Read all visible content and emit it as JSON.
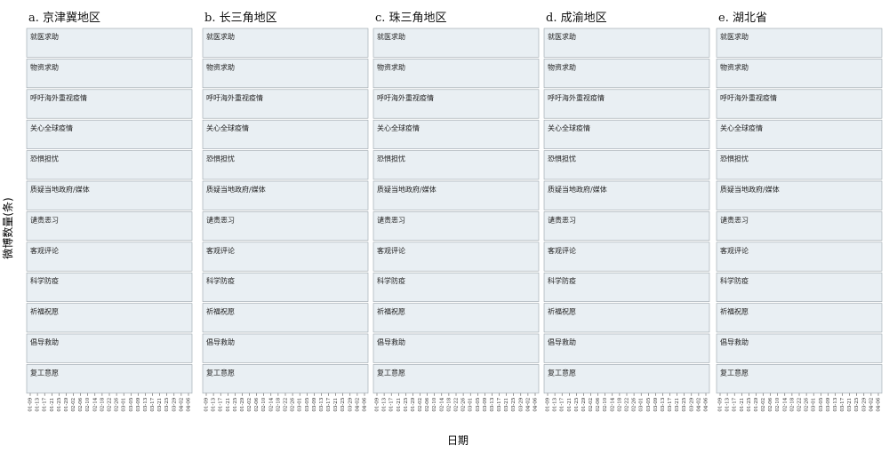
{
  "figure": {
    "y_axis_label": "微博数量(条)",
    "x_axis_label": "日期"
  },
  "chart_data": {
    "type": "line",
    "regions": [
      {
        "id": "a",
        "title": "a. 京津冀地区"
      },
      {
        "id": "b",
        "title": "b. 长三角地区"
      },
      {
        "id": "c",
        "title": "c. 珠三角地区"
      },
      {
        "id": "d",
        "title": "d. 成渝地区"
      },
      {
        "id": "e",
        "title": "e. 湖北省"
      }
    ],
    "categories": [
      "就医求助",
      "物资求助",
      "呼吁海外重视疫情",
      "关心全球疫情",
      "恐惧担忧",
      "质疑当地政府/媒体",
      "谴责恶习",
      "客观评论",
      "科学防疫",
      "祈福祝愿",
      "倡导救助",
      "复工意愿"
    ],
    "x_ticks": [
      "01-09",
      "01-13",
      "01-17",
      "01-21",
      "01-25",
      "01-29",
      "02-02",
      "02-06",
      "02-10",
      "02-14",
      "02-18",
      "02-22",
      "02-26",
      "03-01",
      "03-05",
      "03-09",
      "03-13",
      "03-17",
      "03-21",
      "03-25",
      "03-29",
      "04-02",
      "04-06"
    ],
    "line_color": "#4a9bd6",
    "panel_bg": "#e9eff3"
  }
}
